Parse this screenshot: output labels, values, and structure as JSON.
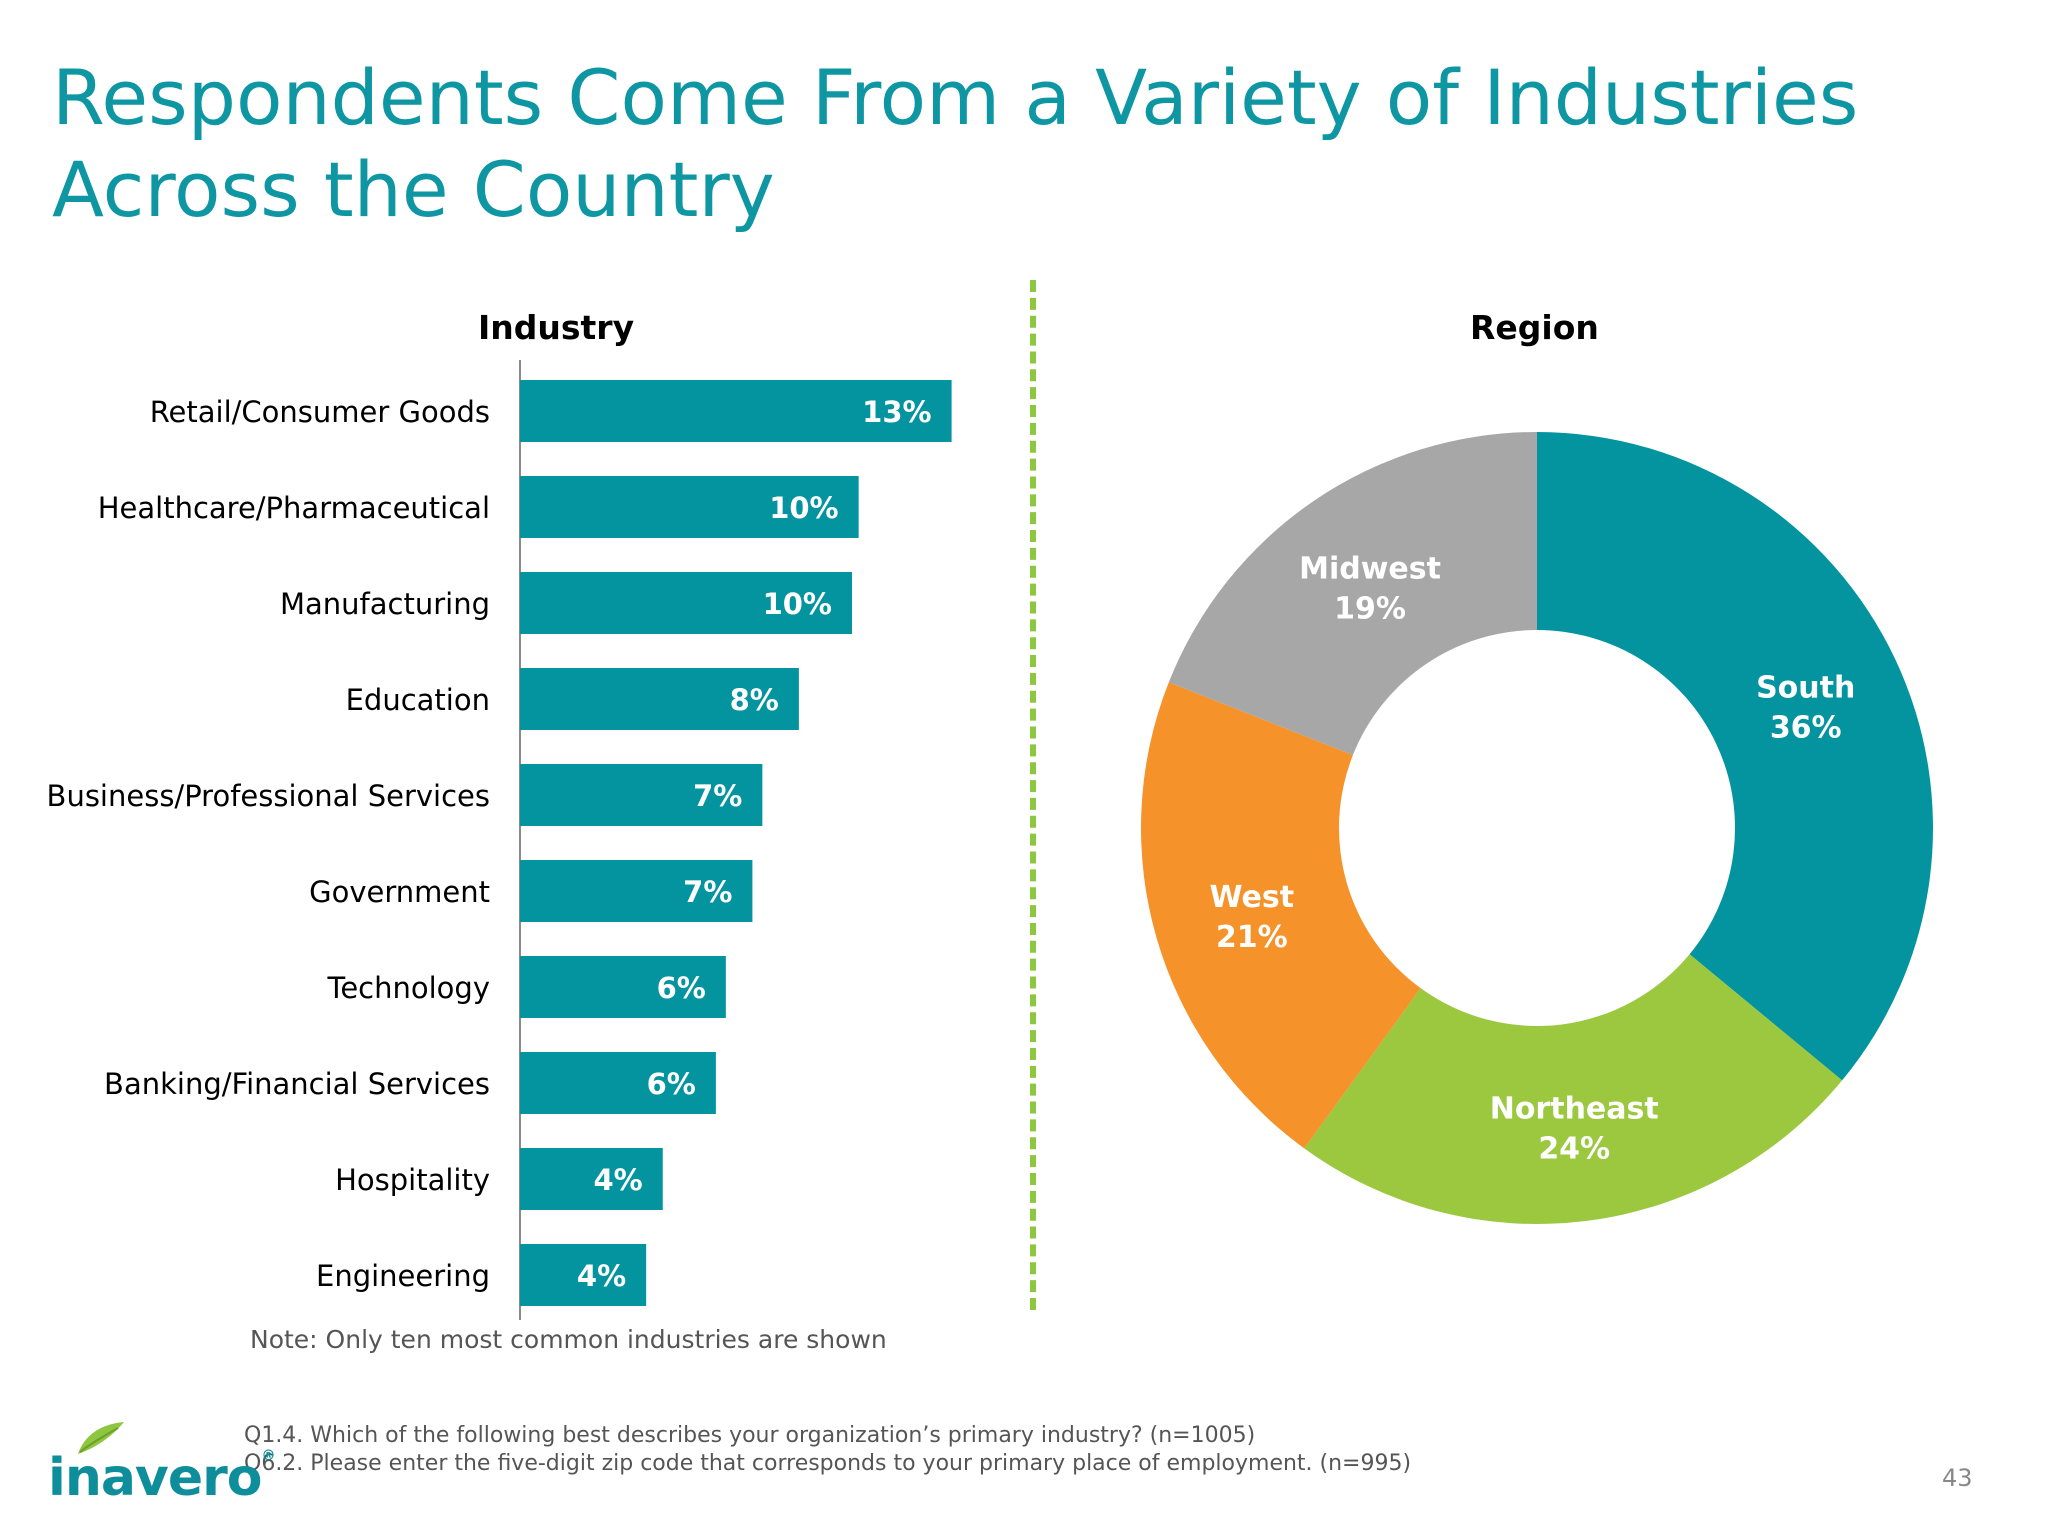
{
  "slide": {
    "title": "Respondents Come From a Variety of Industries Across the Country",
    "note": "Note: Only ten most common industries are shown",
    "footnotes": [
      "Q1.4. Which of the following best describes your organization’s primary industry? (n=1005)",
      "Q6.2. Please enter the five-digit zip code that corresponds to your primary place of employment. (n=995)"
    ],
    "page_number": "43",
    "logo_text": "inavero",
    "logo_mark": "®"
  },
  "colors": {
    "accent": "#0e97a3",
    "bar": "#03949f",
    "south": "#03949f",
    "northeast": "#9bc83e",
    "west": "#f5922a",
    "midwest": "#a8a7a8",
    "divider": "#8dc63f"
  },
  "chart_data": [
    {
      "type": "bar",
      "orientation": "horizontal",
      "title": "Industry",
      "categories": [
        "Retail/Consumer Goods",
        "Healthcare/Pharmaceutical",
        "Manufacturing",
        "Education",
        "Business/Professional Services",
        "Government",
        "Technology",
        "Banking/Financial Services",
        "Hospitality",
        "Engineering"
      ],
      "values": [
        13,
        10.2,
        10,
        8.4,
        7.3,
        7,
        6.2,
        5.9,
        4.3,
        3.8
      ],
      "data_labels": [
        "13%",
        "10%",
        "10%",
        "8%",
        "7%",
        "7%",
        "6%",
        "6%",
        "4%",
        "4%"
      ],
      "unit": "%",
      "grid": false
    },
    {
      "type": "pie",
      "style": "donut",
      "title": "Region",
      "slices": [
        {
          "label": "South",
          "value": 36,
          "data_label": "36%"
        },
        {
          "label": "Northeast",
          "value": 24,
          "data_label": "24%"
        },
        {
          "label": "West",
          "value": 21,
          "data_label": "21%"
        },
        {
          "label": "Midwest",
          "value": 19,
          "data_label": "19%"
        }
      ],
      "start_angle": "12 o'clock",
      "direction": "clockwise"
    }
  ]
}
